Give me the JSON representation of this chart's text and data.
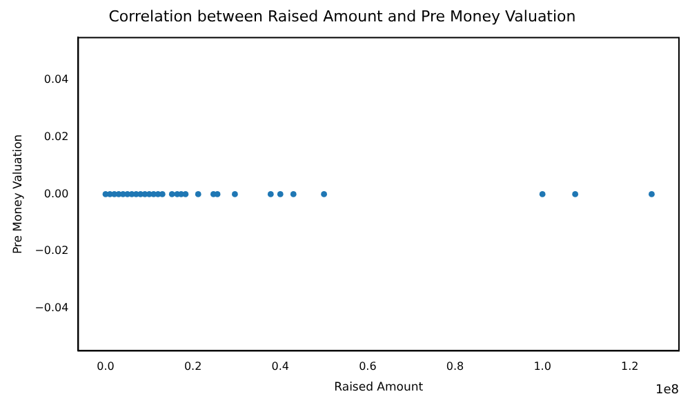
{
  "chart_data": {
    "type": "scatter",
    "title": "Correlation between Raised Amount and Pre Money Valuation",
    "xlabel": "Raised Amount",
    "ylabel": "Pre Money Valuation",
    "annotations": [
      "1e8"
    ],
    "x": [
      0,
      0.01,
      0.02,
      0.03,
      0.04,
      0.05,
      0.06,
      0.07,
      0.08,
      0.09,
      0.1,
      0.11,
      0.12,
      0.13,
      0.152,
      0.164,
      0.173,
      0.183,
      0.212,
      0.247,
      0.256,
      0.296,
      0.378,
      0.4,
      0.43,
      0.5,
      1.0,
      1.075,
      1.25
    ],
    "series": [
      {
        "color": "#1f77b4",
        "values": [
          0,
          0,
          0,
          0,
          0,
          0,
          0,
          0,
          0,
          0,
          0,
          0,
          0,
          0,
          0,
          0,
          0,
          0,
          0,
          0,
          0,
          0,
          0,
          0,
          0,
          0,
          0,
          0,
          0
        ]
      }
    ],
    "xlim": [
      -0.0625,
      1.3125
    ],
    "xticks": [
      {
        "value": 0,
        "label": "0.0"
      },
      0.2,
      0.4,
      0.6,
      0.8,
      {
        "value": 1,
        "label": "1.0"
      },
      1.2
    ],
    "ylim": [
      -0.055,
      0.055
    ],
    "yticks": [
      {
        "value": -0.04,
        "label": "−0.04"
      },
      {
        "value": -0.02,
        "label": "−0.02"
      },
      {
        "value": 0,
        "label": "0.00"
      },
      {
        "value": 0.02,
        "label": "0.02"
      },
      {
        "value": 0.04,
        "label": "0.04"
      }
    ],
    "marker": "circle",
    "grid": false,
    "legend": false
  }
}
